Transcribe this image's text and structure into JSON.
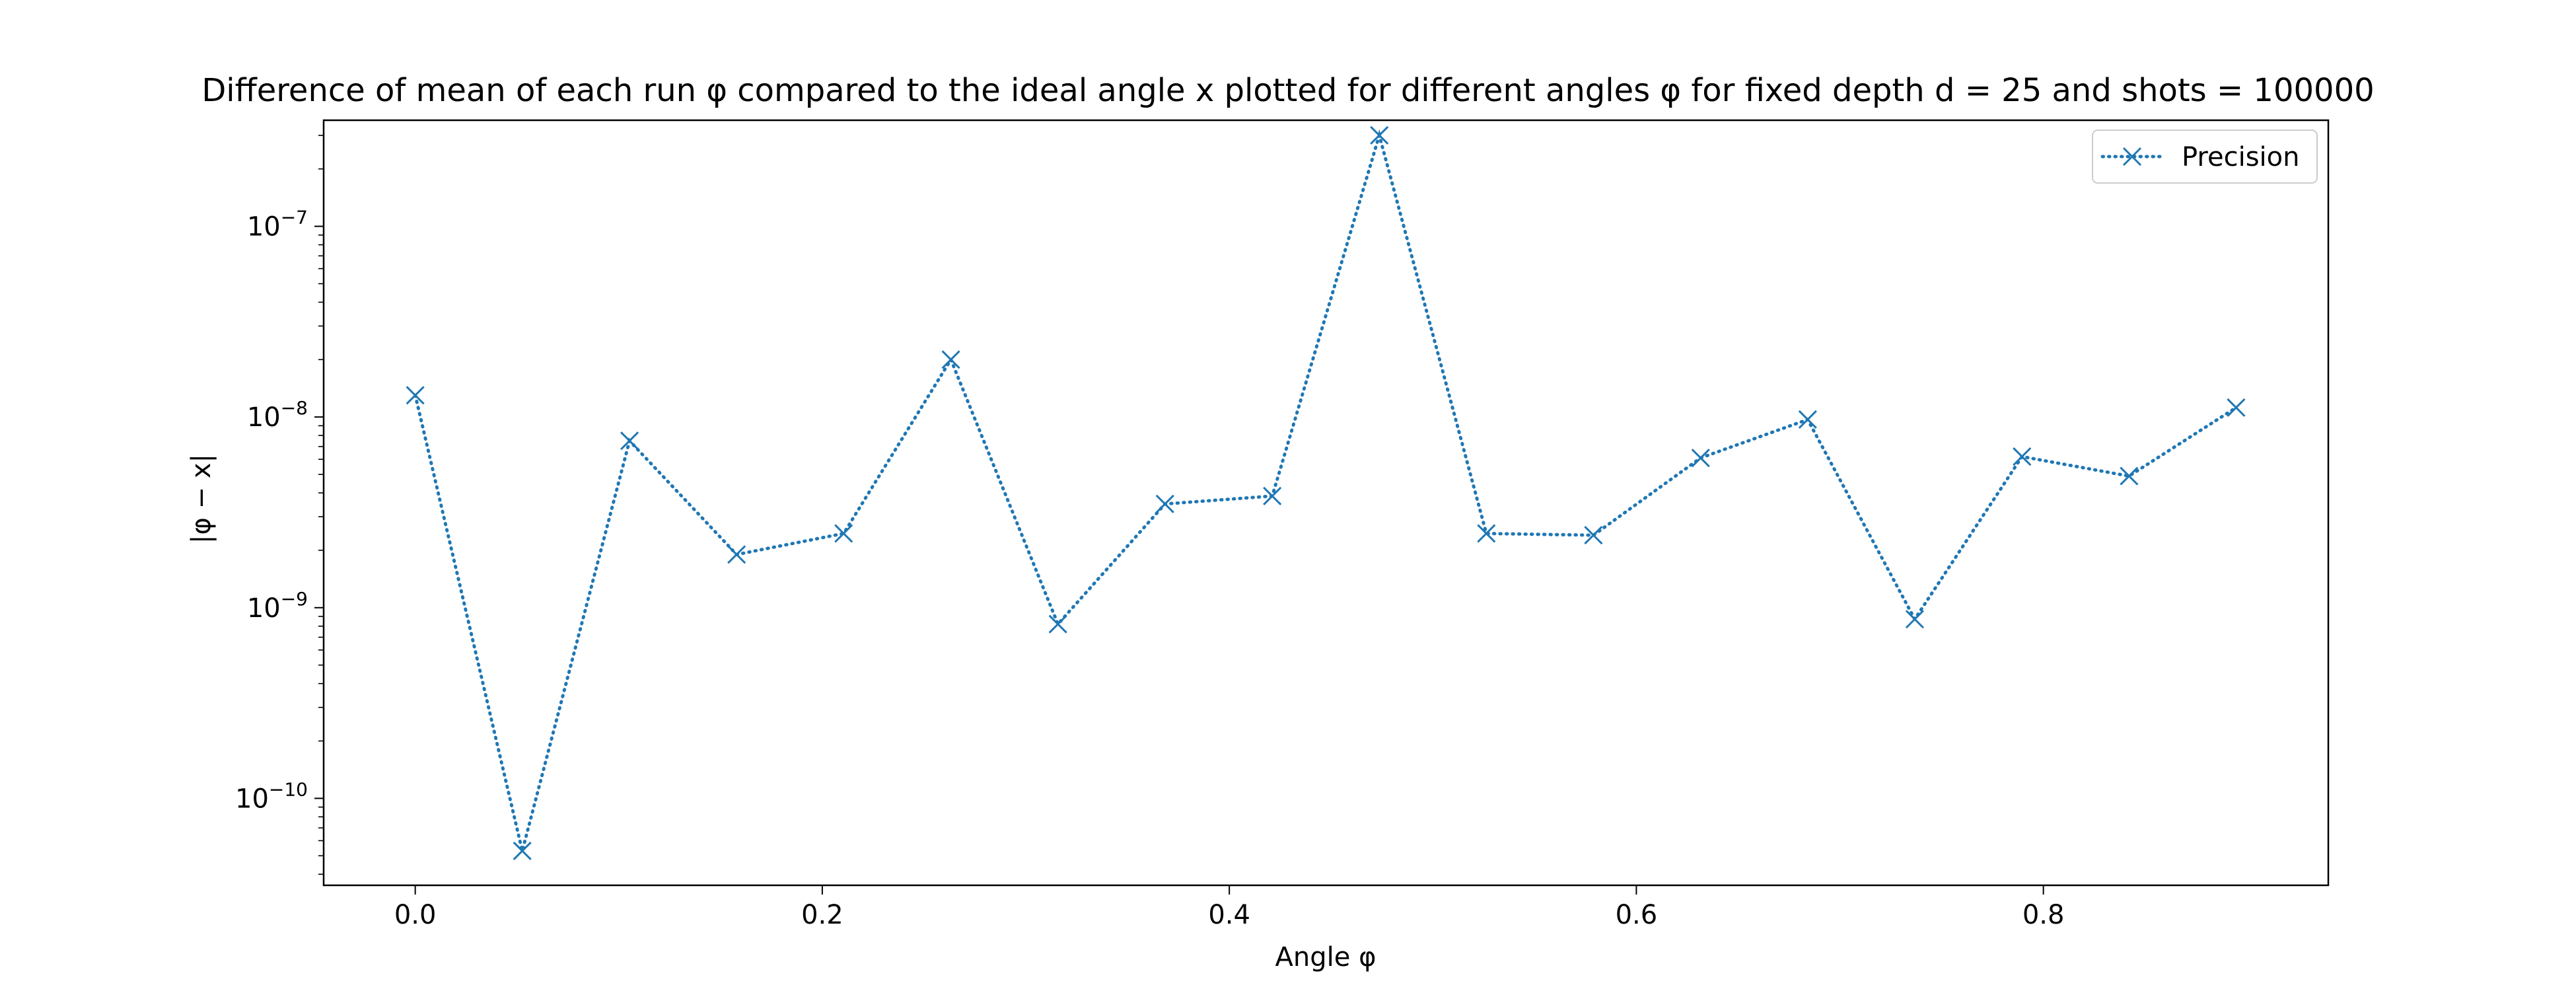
{
  "chart_data": {
    "type": "line",
    "title": "Difference of mean of each run φ compared to the ideal angle x plotted for different angles φ for fixed depth d = 25 and shots = 100000",
    "xlabel": "Angle φ",
    "ylabel": "|φ − x|",
    "yscale": "log",
    "xlim": [
      -0.045,
      0.94
    ],
    "ylim": [
      3.5e-11,
      3.6e-07
    ],
    "xticks": [
      0.0,
      0.2,
      0.4,
      0.6,
      0.8
    ],
    "xtick_labels": [
      "0.0",
      "0.2",
      "0.4",
      "0.6",
      "0.8"
    ],
    "yticks": [
      1e-10,
      1e-09,
      1e-08,
      1e-07
    ],
    "ytick_labels": [
      {
        "base": "10",
        "exp": "−10"
      },
      {
        "base": "10",
        "exp": "−9"
      },
      {
        "base": "10",
        "exp": "−8"
      },
      {
        "base": "10",
        "exp": "−7"
      }
    ],
    "grid": false,
    "legend": {
      "position": "top-right",
      "entries": [
        "Precision"
      ]
    },
    "series": [
      {
        "name": "Precision",
        "color": "#1f77b4",
        "line_style": "dotted",
        "marker": "x",
        "x": [
          0.0,
          0.0526,
          0.1053,
          0.1579,
          0.2105,
          0.2632,
          0.3158,
          0.3684,
          0.4211,
          0.4737,
          0.5263,
          0.5789,
          0.6316,
          0.6842,
          0.7368,
          0.7895,
          0.8421,
          0.8947
        ],
        "y": [
          1.3e-08,
          5.3e-11,
          7.5e-09,
          1.9e-09,
          2.45e-09,
          2e-08,
          8.2e-10,
          3.5e-09,
          3.85e-09,
          3e-07,
          2.45e-09,
          2.4e-09,
          6.1e-09,
          9.7e-09,
          8.7e-10,
          6.2e-09,
          4.9e-09,
          1.12e-08
        ]
      }
    ]
  }
}
